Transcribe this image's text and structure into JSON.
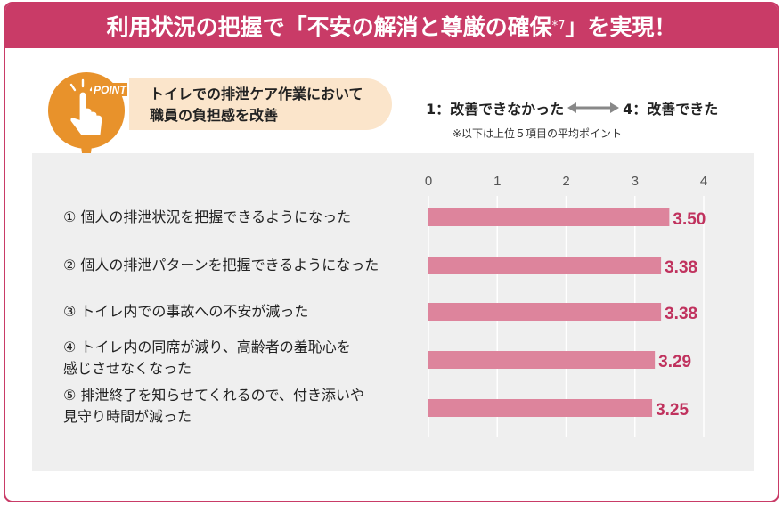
{
  "header": {
    "title_prefix": "利用状況の把握で「",
    "title_emph": "不安の解消と尊厳の確保",
    "title_sup": "*7",
    "title_suffix": "」を実現！"
  },
  "point": {
    "badge": "POINT",
    "line1": "トイレでの排泄ケア作業において",
    "line2": "職員の負担感を改善"
  },
  "legend": {
    "low": "1：改善できなかった",
    "high": "4：改善できた",
    "note": "※以下は上位５項目の平均ポイント"
  },
  "colors": {
    "accent": "#c93b67",
    "bar": "#dd849c",
    "value_text": "#c0325e",
    "panel_bg": "#efefef",
    "point_orange": "#e8922b",
    "point_tab": "#fbe5cb"
  },
  "chart_data": {
    "type": "bar",
    "orientation": "horizontal",
    "categories": [
      "① 個人の排泄状況を把握できるようになった",
      "② 個人の排泄パターンを把握できるようになった",
      "③ トイレ内での事故への不安が減った",
      "④ トイレ内の同席が減り、高齢者の羞恥心を感じさせなくなった",
      "⑤ 排泄終了を知らせてくれるので、付き添いや見守り時間が減った"
    ],
    "category_lines": [
      [
        "① 個人の排泄状況を把握できるようになった"
      ],
      [
        "② 個人の排泄パターンを把握できるようになった"
      ],
      [
        "③ トイレ内での事故への不安が減った"
      ],
      [
        "④ トイレ内の同席が減り、高齢者の羞恥心を",
        "感じさせなくなった"
      ],
      [
        "⑤ 排泄終了を知らせてくれるので、付き添いや",
        "見守り時間が減った"
      ]
    ],
    "values": [
      3.5,
      3.38,
      3.38,
      3.29,
      3.25
    ],
    "value_labels": [
      "3.50",
      "3.38",
      "3.38",
      "3.29",
      "3.25"
    ],
    "xlim": [
      0,
      4
    ],
    "xticks": [
      "0",
      "1",
      "2",
      "3",
      "4"
    ],
    "grid": true
  }
}
